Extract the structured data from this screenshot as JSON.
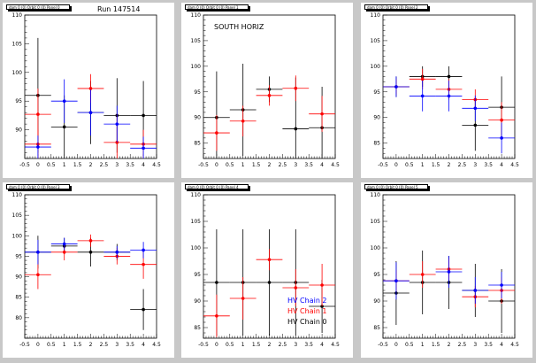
{
  "canvas": {
    "background": "#c8c8c8"
  },
  "series_colors": {
    "HV Chain 0": "#000000",
    "HV Chain 1": "#ff0000",
    "HV Chain 2": "#0000ff"
  },
  "run_label": "Run 147514",
  "chart_data": [
    {
      "type": "scatter",
      "pad_title": "dam 0 (0) Orbit 0 (0) Panel 0",
      "annotation": "Run 147514",
      "xlim": [
        -0.5,
        4.5
      ],
      "ylim": [
        85,
        110
      ],
      "xticks": [
        "-0.5",
        "0",
        "0.5",
        "1",
        "1.5",
        "2",
        "2.5",
        "3",
        "3.5",
        "4",
        "4.5"
      ],
      "yticks": [
        "90",
        "95",
        "100",
        "105",
        "110"
      ],
      "series": [
        {
          "name": "HV Chain 0",
          "color": "#000000",
          "points": [
            {
              "x": 0,
              "y": 96.0,
              "ey": 10.0
            },
            {
              "x": 1,
              "y": 90.5,
              "ey": 5.5
            },
            {
              "x": 2,
              "y": 93.0,
              "ey": 5.5
            },
            {
              "x": 3,
              "y": 92.5,
              "ey": 6.5
            },
            {
              "x": 4,
              "y": 92.5,
              "ey": 6.0
            }
          ]
        },
        {
          "name": "HV Chain 1",
          "color": "#ff0000",
          "points": [
            {
              "x": 0,
              "y": 92.7,
              "ey": 4.5
            },
            {
              "x": 0,
              "y": 87.5,
              "ey": 2.5
            },
            {
              "x": 2,
              "y": 97.2,
              "ey": 2.5
            },
            {
              "x": 3,
              "y": 87.8,
              "ey": 5.0
            },
            {
              "x": 4,
              "y": 87.5,
              "ey": 2.5
            }
          ]
        },
        {
          "name": "HV Chain 2",
          "color": "#0000ff",
          "points": [
            {
              "x": 0,
              "y": 87.0,
              "ey": 2.0
            },
            {
              "x": 1,
              "y": 95.0,
              "ey": 3.8
            },
            {
              "x": 2,
              "y": 93.0,
              "ey": 4.0
            },
            {
              "x": 3,
              "y": 91.0,
              "ey": 3.2
            },
            {
              "x": 4,
              "y": 86.8,
              "ey": 2.0
            }
          ]
        }
      ]
    },
    {
      "type": "scatter",
      "pad_title": "dam 0 (0) Orbit 0 (0) Panel 1",
      "annotation": "SOUTH HORIZ",
      "xlim": [
        -0.5,
        4.5
      ],
      "ylim": [
        82,
        110
      ],
      "xticks": [
        "-0.5",
        "0",
        "0.5",
        "1",
        "1.5",
        "2",
        "2.5",
        "3",
        "3.5",
        "4",
        "4.5"
      ],
      "yticks": [
        "85",
        "90",
        "95",
        "100",
        "105",
        "110"
      ],
      "series": [
        {
          "name": "HV Chain 0",
          "color": "#000000",
          "points": [
            {
              "x": 0,
              "y": 90.0,
              "ey": 9.0
            },
            {
              "x": 1,
              "y": 91.5,
              "ey": 9.0
            },
            {
              "x": 2,
              "y": 95.5,
              "ey": 2.5
            },
            {
              "x": 3,
              "y": 87.8,
              "ey": 10.0
            },
            {
              "x": 4,
              "y": 88.0,
              "ey": 8.0
            }
          ]
        },
        {
          "name": "HV Chain 1",
          "color": "#ff0000",
          "points": [
            {
              "x": 0,
              "y": 87.0,
              "ey": 3.5
            },
            {
              "x": 1,
              "y": 89.3,
              "ey": 3.0
            },
            {
              "x": 2,
              "y": 94.3,
              "ey": 2.0
            },
            {
              "x": 3,
              "y": 95.7,
              "ey": 2.5
            },
            {
              "x": 4,
              "y": 90.7,
              "ey": 3.5
            }
          ]
        }
      ]
    },
    {
      "type": "scatter",
      "pad_title": "dam 0 (0) Orbit 0 (0) Panel 2",
      "annotation": "",
      "xlim": [
        -0.5,
        4.5
      ],
      "ylim": [
        82,
        110
      ],
      "xticks": [
        "-0.5",
        "0",
        "0.5",
        "1",
        "1.5",
        "2",
        "2.5",
        "3",
        "3.5",
        "4",
        "4.5"
      ],
      "yticks": [
        "85",
        "90",
        "95",
        "100",
        "105",
        "110"
      ],
      "series": [
        {
          "name": "HV Chain 0",
          "color": "#000000",
          "points": [
            {
              "x": 0,
              "y": 96.0,
              "ey": 2.0
            },
            {
              "x": 1,
              "y": 98.0,
              "ey": 2.0
            },
            {
              "x": 2,
              "y": 98.0,
              "ey": 2.0
            },
            {
              "x": 3,
              "y": 88.5,
              "ey": 5.0
            },
            {
              "x": 4,
              "y": 92.0,
              "ey": 6.0
            }
          ]
        },
        {
          "name": "HV Chain 1",
          "color": "#ff0000",
          "points": [
            {
              "x": 0,
              "y": 96.0,
              "ey": 1.5
            },
            {
              "x": 1,
              "y": 97.5,
              "ey": 2.0
            },
            {
              "x": 2,
              "y": 95.5,
              "ey": 2.0
            },
            {
              "x": 3,
              "y": 93.5,
              "ey": 2.0
            },
            {
              "x": 4,
              "y": 89.5,
              "ey": 3.5
            }
          ]
        },
        {
          "name": "HV Chain 2",
          "color": "#0000ff",
          "points": [
            {
              "x": 0,
              "y": 96.0,
              "ey": 2.0
            },
            {
              "x": 1,
              "y": 94.2,
              "ey": 3.0
            },
            {
              "x": 2,
              "y": 94.2,
              "ey": 3.0
            },
            {
              "x": 3,
              "y": 91.8,
              "ey": 2.5
            },
            {
              "x": 4,
              "y": 86.0,
              "ey": 3.0
            }
          ]
        }
      ]
    },
    {
      "type": "scatter",
      "pad_title": "dam 0 (0) Orbit 0 (0) Panel 3",
      "annotation": "",
      "xlim": [
        -0.5,
        4.5
      ],
      "ylim": [
        75,
        110
      ],
      "xticks": [
        "-0.5",
        "0",
        "0.5",
        "1",
        "1.5",
        "2",
        "2.5",
        "3",
        "3.5",
        "4",
        "4.5"
      ],
      "yticks": [
        "80",
        "85",
        "90",
        "95",
        "100",
        "105",
        "110"
      ],
      "series": [
        {
          "name": "HV Chain 0",
          "color": "#000000",
          "points": [
            {
              "x": 0,
              "y": 96.0,
              "ey": 4.0
            },
            {
              "x": 1,
              "y": 97.5,
              "ey": 2.0
            },
            {
              "x": 2,
              "y": 96.0,
              "ey": 3.5
            },
            {
              "x": 3,
              "y": 96.0,
              "ey": 2.0
            },
            {
              "x": 4,
              "y": 82.0,
              "ey": 5.0
            }
          ]
        },
        {
          "name": "HV Chain 1",
          "color": "#ff0000",
          "points": [
            {
              "x": 0,
              "y": 90.5,
              "ey": 3.5
            },
            {
              "x": 1,
              "y": 96.0,
              "ey": 2.0
            },
            {
              "x": 2,
              "y": 98.8,
              "ey": 1.5
            },
            {
              "x": 3,
              "y": 95.0,
              "ey": 2.0
            },
            {
              "x": 4,
              "y": 93.0,
              "ey": 3.5
            }
          ]
        },
        {
          "name": "HV Chain 2",
          "color": "#0000ff",
          "points": [
            {
              "x": 0,
              "y": 96.0,
              "ey": 3.0
            },
            {
              "x": 1,
              "y": 98.0,
              "ey": 1.5
            },
            {
              "x": 3,
              "y": 96.0,
              "ey": 1.5
            },
            {
              "x": 4,
              "y": 96.5,
              "ey": 2.0
            }
          ]
        }
      ]
    },
    {
      "type": "scatter",
      "pad_title": "dam 0 (0) Orbit 0 (0) Panel 4",
      "annotation": "",
      "xlim": [
        -0.5,
        4.5
      ],
      "ylim": [
        83,
        110
      ],
      "xticks": [
        "-0.5",
        "0",
        "0.5",
        "1",
        "1.5",
        "2",
        "2.5",
        "3",
        "3.5",
        "4",
        "4.5"
      ],
      "yticks": [
        "85",
        "90",
        "95",
        "100",
        "105",
        "110"
      ],
      "legend": [
        "HV Chain 2",
        "HV Chain 1",
        "HV Chain 0"
      ],
      "series": [
        {
          "name": "HV Chain 0",
          "color": "#000000",
          "points": [
            {
              "x": 0,
              "y": 93.5,
              "ey": 10.0
            },
            {
              "x": 1,
              "y": 93.5,
              "ey": 10.0
            },
            {
              "x": 2,
              "y": 93.5,
              "ey": 10.0
            },
            {
              "x": 3,
              "y": 93.5,
              "ey": 10.0
            },
            {
              "x": 4,
              "y": 89.0,
              "ey": 5.0
            }
          ]
        },
        {
          "name": "HV Chain 1",
          "color": "#ff0000",
          "points": [
            {
              "x": 0,
              "y": 87.2,
              "ey": 4.0
            },
            {
              "x": 1,
              "y": 90.5,
              "ey": 4.0
            },
            {
              "x": 2,
              "y": 97.8,
              "ey": 2.0
            },
            {
              "x": 3,
              "y": 92.5,
              "ey": 3.5
            },
            {
              "x": 4,
              "y": 93.0,
              "ey": 4.0
            }
          ]
        }
      ]
    },
    {
      "type": "scatter",
      "pad_title": "dam 0 (0) Orbit 0 (0) Panel 5",
      "annotation": "",
      "xlim": [
        -0.5,
        4.5
      ],
      "ylim": [
        83,
        110
      ],
      "xticks": [
        "-0.5",
        "0",
        "0.5",
        "1",
        "1.5",
        "2",
        "2.5",
        "3",
        "3.5",
        "4",
        "4.5"
      ],
      "yticks": [
        "85",
        "90",
        "95",
        "100",
        "105",
        "110"
      ],
      "series": [
        {
          "name": "HV Chain 0",
          "color": "#000000",
          "points": [
            {
              "x": 0,
              "y": 91.5,
              "ey": 6.0
            },
            {
              "x": 1,
              "y": 93.5,
              "ey": 6.0
            },
            {
              "x": 2,
              "y": 93.5,
              "ey": 5.0
            },
            {
              "x": 3,
              "y": 92.0,
              "ey": 5.0
            },
            {
              "x": 4,
              "y": 90.0,
              "ey": 6.0
            }
          ]
        },
        {
          "name": "HV Chain 1",
          "color": "#ff0000",
          "points": [
            {
              "x": 0,
              "y": 93.8,
              "ey": 2.0
            },
            {
              "x": 1,
              "y": 95.0,
              "ey": 2.5
            },
            {
              "x": 2,
              "y": 96.0,
              "ey": 2.0
            },
            {
              "x": 3,
              "y": 90.8,
              "ey": 2.0
            },
            {
              "x": 4,
              "y": 92.0,
              "ey": 2.5
            }
          ]
        },
        {
          "name": "HV Chain 2",
          "color": "#0000ff",
          "points": [
            {
              "x": 0,
              "y": 93.8,
              "ey": 3.5
            },
            {
              "x": 2,
              "y": 95.5,
              "ey": 3.0
            },
            {
              "x": 3,
              "y": 92.0,
              "ey": 2.5
            },
            {
              "x": 4,
              "y": 93.0,
              "ey": 2.5
            }
          ]
        }
      ]
    }
  ]
}
